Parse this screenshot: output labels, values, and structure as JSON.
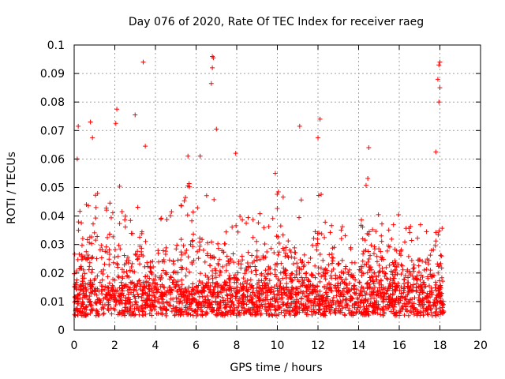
{
  "chart_data": {
    "type": "scatter",
    "title": "Day 076 of 2020, Rate Of TEC Index for receiver raeg",
    "xlabel": "GPS time / hours",
    "ylabel": "ROTI / TECUs",
    "xlim": [
      0,
      20
    ],
    "ylim": [
      0,
      0.1
    ],
    "grid": true,
    "marker": "+",
    "color": "#ff0000",
    "x_ticks": [
      "0",
      "2",
      "4",
      "6",
      "8",
      "10",
      "12",
      "14",
      "16",
      "18",
      "20"
    ],
    "y_ticks": [
      "0",
      "0.01",
      "0.02",
      "0.03",
      "0.04",
      "0.05",
      "0.06",
      "0.07",
      "0.08",
      "0.09",
      "0.1"
    ],
    "data_range_hours": [
      0,
      18.2
    ],
    "notable_points": [
      {
        "x": 3.4,
        "y": 0.094
      },
      {
        "x": 6.8,
        "y": 0.096
      },
      {
        "x": 6.85,
        "y": 0.0955
      },
      {
        "x": 6.8,
        "y": 0.092
      },
      {
        "x": 6.75,
        "y": 0.0865
      },
      {
        "x": 18.0,
        "y": 0.094
      },
      {
        "x": 17.95,
        "y": 0.093
      },
      {
        "x": 17.9,
        "y": 0.088
      },
      {
        "x": 18.0,
        "y": 0.085
      },
      {
        "x": 17.95,
        "y": 0.08
      },
      {
        "x": 2.1,
        "y": 0.0775
      },
      {
        "x": 2.05,
        "y": 0.0725
      },
      {
        "x": 3.0,
        "y": 0.0755
      },
      {
        "x": 0.8,
        "y": 0.073
      },
      {
        "x": 0.9,
        "y": 0.0675
      },
      {
        "x": 0.2,
        "y": 0.0715
      },
      {
        "x": 0.15,
        "y": 0.06
      },
      {
        "x": 12.1,
        "y": 0.074
      },
      {
        "x": 12.0,
        "y": 0.0675
      },
      {
        "x": 11.1,
        "y": 0.0715
      },
      {
        "x": 7.0,
        "y": 0.0705
      },
      {
        "x": 5.6,
        "y": 0.061
      },
      {
        "x": 6.2,
        "y": 0.061
      },
      {
        "x": 14.5,
        "y": 0.064
      },
      {
        "x": 17.8,
        "y": 0.0625
      },
      {
        "x": 3.5,
        "y": 0.0645
      },
      {
        "x": 7.95,
        "y": 0.062
      },
      {
        "x": 9.9,
        "y": 0.055
      }
    ],
    "envelope": [
      {
        "x": 0.0,
        "y": 0.04
      },
      {
        "x": 0.5,
        "y": 0.045
      },
      {
        "x": 1.0,
        "y": 0.055
      },
      {
        "x": 1.5,
        "y": 0.042
      },
      {
        "x": 2.0,
        "y": 0.062
      },
      {
        "x": 2.5,
        "y": 0.04
      },
      {
        "x": 3.0,
        "y": 0.05
      },
      {
        "x": 3.5,
        "y": 0.042
      },
      {
        "x": 4.0,
        "y": 0.035
      },
      {
        "x": 4.5,
        "y": 0.045
      },
      {
        "x": 5.0,
        "y": 0.042
      },
      {
        "x": 5.5,
        "y": 0.05
      },
      {
        "x": 6.0,
        "y": 0.055
      },
      {
        "x": 6.5,
        "y": 0.05
      },
      {
        "x": 7.0,
        "y": 0.048
      },
      {
        "x": 7.5,
        "y": 0.04
      },
      {
        "x": 8.0,
        "y": 0.042
      },
      {
        "x": 8.5,
        "y": 0.04
      },
      {
        "x": 9.0,
        "y": 0.042
      },
      {
        "x": 9.5,
        "y": 0.045
      },
      {
        "x": 10.0,
        "y": 0.052
      },
      {
        "x": 10.5,
        "y": 0.045
      },
      {
        "x": 11.0,
        "y": 0.05
      },
      {
        "x": 11.5,
        "y": 0.04
      },
      {
        "x": 12.0,
        "y": 0.06
      },
      {
        "x": 12.5,
        "y": 0.042
      },
      {
        "x": 13.0,
        "y": 0.04
      },
      {
        "x": 13.5,
        "y": 0.035
      },
      {
        "x": 14.0,
        "y": 0.04
      },
      {
        "x": 14.5,
        "y": 0.055
      },
      {
        "x": 15.0,
        "y": 0.045
      },
      {
        "x": 15.5,
        "y": 0.035
      },
      {
        "x": 16.0,
        "y": 0.045
      },
      {
        "x": 16.5,
        "y": 0.04
      },
      {
        "x": 17.0,
        "y": 0.038
      },
      {
        "x": 17.5,
        "y": 0.04
      },
      {
        "x": 18.0,
        "y": 0.06
      },
      {
        "x": 18.2,
        "y": 0.03
      }
    ],
    "baseline_range": [
      0.005,
      0.015
    ],
    "generated_point_count": 2600
  }
}
